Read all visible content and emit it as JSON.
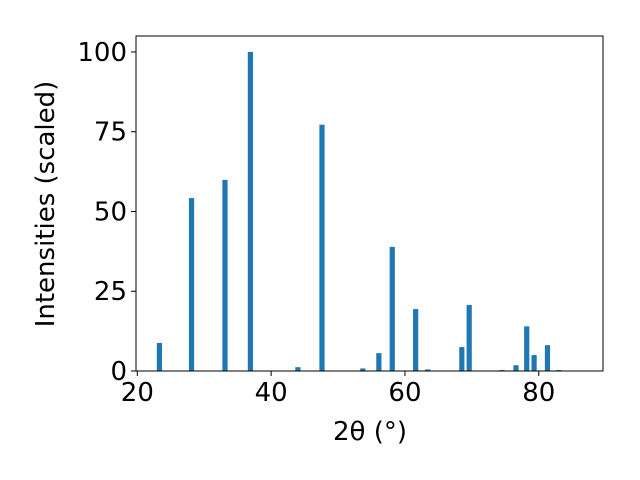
{
  "chart_data": {
    "type": "bar",
    "x_label": "2θ (°)",
    "y_label": "Intensities (scaled)",
    "x": [
      23.3,
      28.1,
      33.1,
      36.9,
      44.0,
      47.6,
      53.7,
      56.1,
      58.1,
      61.6,
      63.4,
      68.5,
      69.6,
      74.5,
      76.6,
      78.2,
      79.3,
      81.3,
      83.0
    ],
    "values": [
      8.8,
      54.2,
      59.9,
      100,
      1.2,
      77.2,
      0.8,
      5.6,
      38.9,
      19.4,
      0.5,
      7.5,
      20.7,
      0.3,
      1.8,
      14.0,
      5.0,
      8.1,
      0.3
    ],
    "color": "#1f77b4",
    "xlim": [
      19.8,
      89.6
    ],
    "xticks": [
      20,
      40,
      60,
      80
    ],
    "ylim": [
      0,
      105
    ],
    "yticks": [
      0,
      25,
      50,
      75,
      100
    ]
  }
}
